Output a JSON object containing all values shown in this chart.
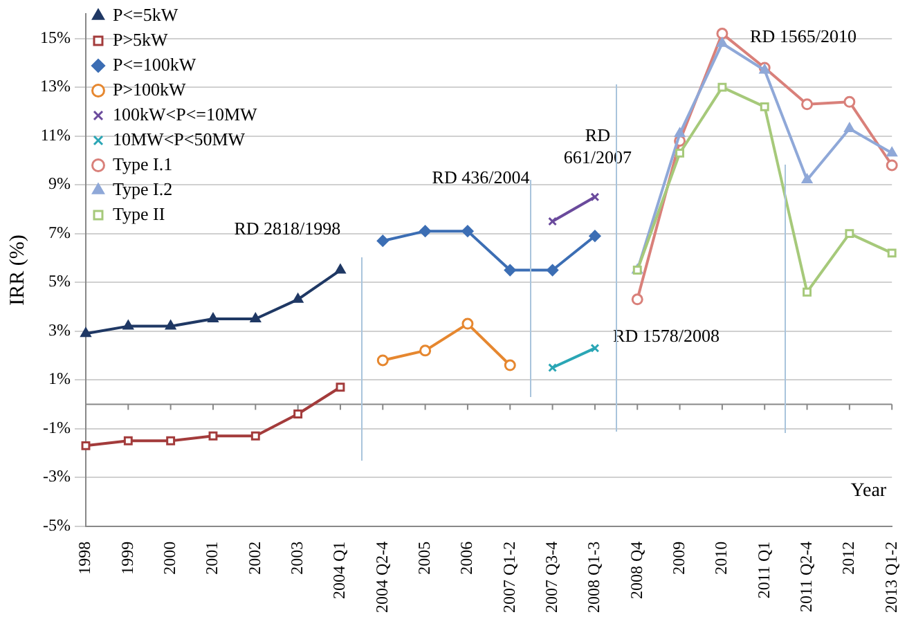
{
  "chart_data": {
    "type": "line",
    "xlabel": "Year",
    "ylabel": "IRR (%)",
    "categories": [
      "1998",
      "1999",
      "2000",
      "2001",
      "2002",
      "2003",
      "2004 Q1",
      "2004 Q2-4",
      "2005",
      "2006",
      "2007 Q1-2",
      "2007 Q3-4",
      "2008 Q1-3",
      "2008 Q4",
      "2009",
      "2010",
      "2011 Q1",
      "2011 Q2-4",
      "2012",
      "2013 Q1-2"
    ],
    "series": [
      {
        "name": "P<=5kW",
        "color": "#1f3864",
        "marker": "triangle",
        "values": [
          2.9,
          3.2,
          3.2,
          3.5,
          3.5,
          4.3,
          5.5,
          null,
          null,
          null,
          null,
          null,
          null,
          null,
          null,
          null,
          null,
          null,
          null,
          null
        ]
      },
      {
        "name": "P>5kW",
        "color": "#a33b3b",
        "marker": "square",
        "values": [
          -1.7,
          -1.5,
          -1.5,
          -1.3,
          -1.3,
          -0.4,
          0.7,
          null,
          null,
          null,
          null,
          null,
          null,
          null,
          null,
          null,
          null,
          null,
          null,
          null
        ]
      },
      {
        "name": "P<=100kW",
        "color": "#3c6eb4",
        "marker": "diamond",
        "values": [
          null,
          null,
          null,
          null,
          null,
          null,
          null,
          6.7,
          7.1,
          7.1,
          5.5,
          5.5,
          6.9,
          null,
          null,
          null,
          null,
          null,
          null,
          null
        ]
      },
      {
        "name": "P>100kW",
        "color": "#e6872f",
        "marker": "circle",
        "values": [
          null,
          null,
          null,
          null,
          null,
          null,
          null,
          1.8,
          2.2,
          3.3,
          1.6,
          null,
          null,
          null,
          null,
          null,
          null,
          null,
          null,
          null
        ]
      },
      {
        "name": "100kW<P<=10MW",
        "color": "#6a4a9c",
        "marker": "cross",
        "values": [
          null,
          null,
          null,
          null,
          null,
          null,
          null,
          null,
          null,
          null,
          null,
          7.5,
          8.5,
          null,
          null,
          null,
          null,
          null,
          null,
          null
        ]
      },
      {
        "name": "10MW<P<50MW",
        "color": "#2aa6b5",
        "marker": "cross",
        "values": [
          null,
          null,
          null,
          null,
          null,
          null,
          null,
          null,
          null,
          null,
          null,
          1.5,
          2.3,
          null,
          null,
          null,
          null,
          null,
          null,
          null
        ]
      },
      {
        "name": "Type I.1",
        "color": "#d9807a",
        "marker": "circle",
        "values": [
          null,
          null,
          null,
          null,
          null,
          null,
          null,
          null,
          null,
          null,
          null,
          null,
          null,
          4.3,
          10.8,
          15.2,
          13.8,
          12.3,
          12.4,
          9.8
        ]
      },
      {
        "name": "Type I.2",
        "color": "#8fa8d8",
        "marker": "triangle",
        "values": [
          null,
          null,
          null,
          null,
          null,
          null,
          null,
          null,
          null,
          null,
          null,
          null,
          null,
          5.5,
          11.1,
          14.8,
          13.7,
          9.2,
          11.3,
          10.3
        ]
      },
      {
        "name": "Type II",
        "color": "#a6c97a",
        "marker": "square",
        "values": [
          null,
          null,
          null,
          null,
          null,
          null,
          null,
          null,
          null,
          null,
          null,
          null,
          null,
          5.5,
          10.3,
          13.0,
          12.2,
          4.6,
          7.0,
          6.2
        ]
      }
    ],
    "annotations": [
      "RD 2818/1998",
      "RD 436/2004",
      "RD 661/2007",
      "RD 1578/2008",
      "RD 1565/2010"
    ],
    "ylim": [
      -5,
      16
    ],
    "yticks": [
      {
        "value": -5,
        "label": "-5%"
      },
      {
        "value": -3,
        "label": "-3%"
      },
      {
        "value": -1,
        "label": "-1%"
      },
      {
        "value": 1,
        "label": "1%"
      },
      {
        "value": 3,
        "label": "3%"
      },
      {
        "value": 5,
        "label": "5%"
      },
      {
        "value": 7,
        "label": "7%"
      },
      {
        "value": 9,
        "label": "9%"
      },
      {
        "value": 11,
        "label": "11%"
      },
      {
        "value": 13,
        "label": "13%"
      },
      {
        "value": 15,
        "label": "15%"
      }
    ],
    "grid": "y",
    "legend": "top left"
  }
}
